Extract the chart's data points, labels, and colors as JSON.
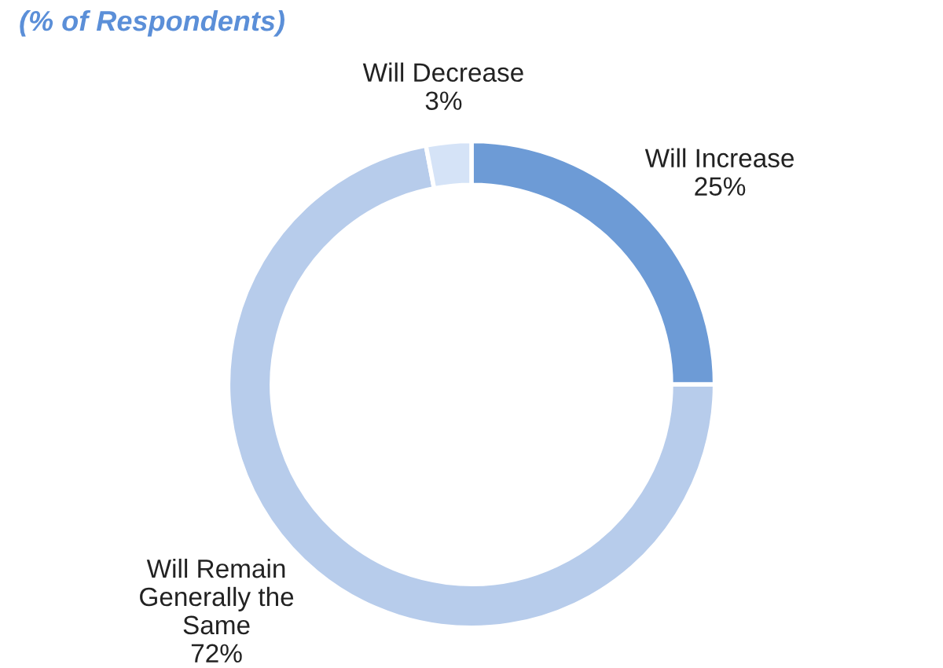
{
  "chart_data": {
    "type": "donut",
    "subtitle": "(% of Respondents)",
    "categories": [
      "Will Increase",
      "Will Remain Generally the Same",
      "Will Decrease"
    ],
    "values": [
      25,
      72,
      3
    ],
    "colors": [
      "#6d9bd6",
      "#b7cceb",
      "#d5e3f7"
    ],
    "value_labels": [
      "25%",
      "72%",
      "3%"
    ],
    "legend": false
  }
}
